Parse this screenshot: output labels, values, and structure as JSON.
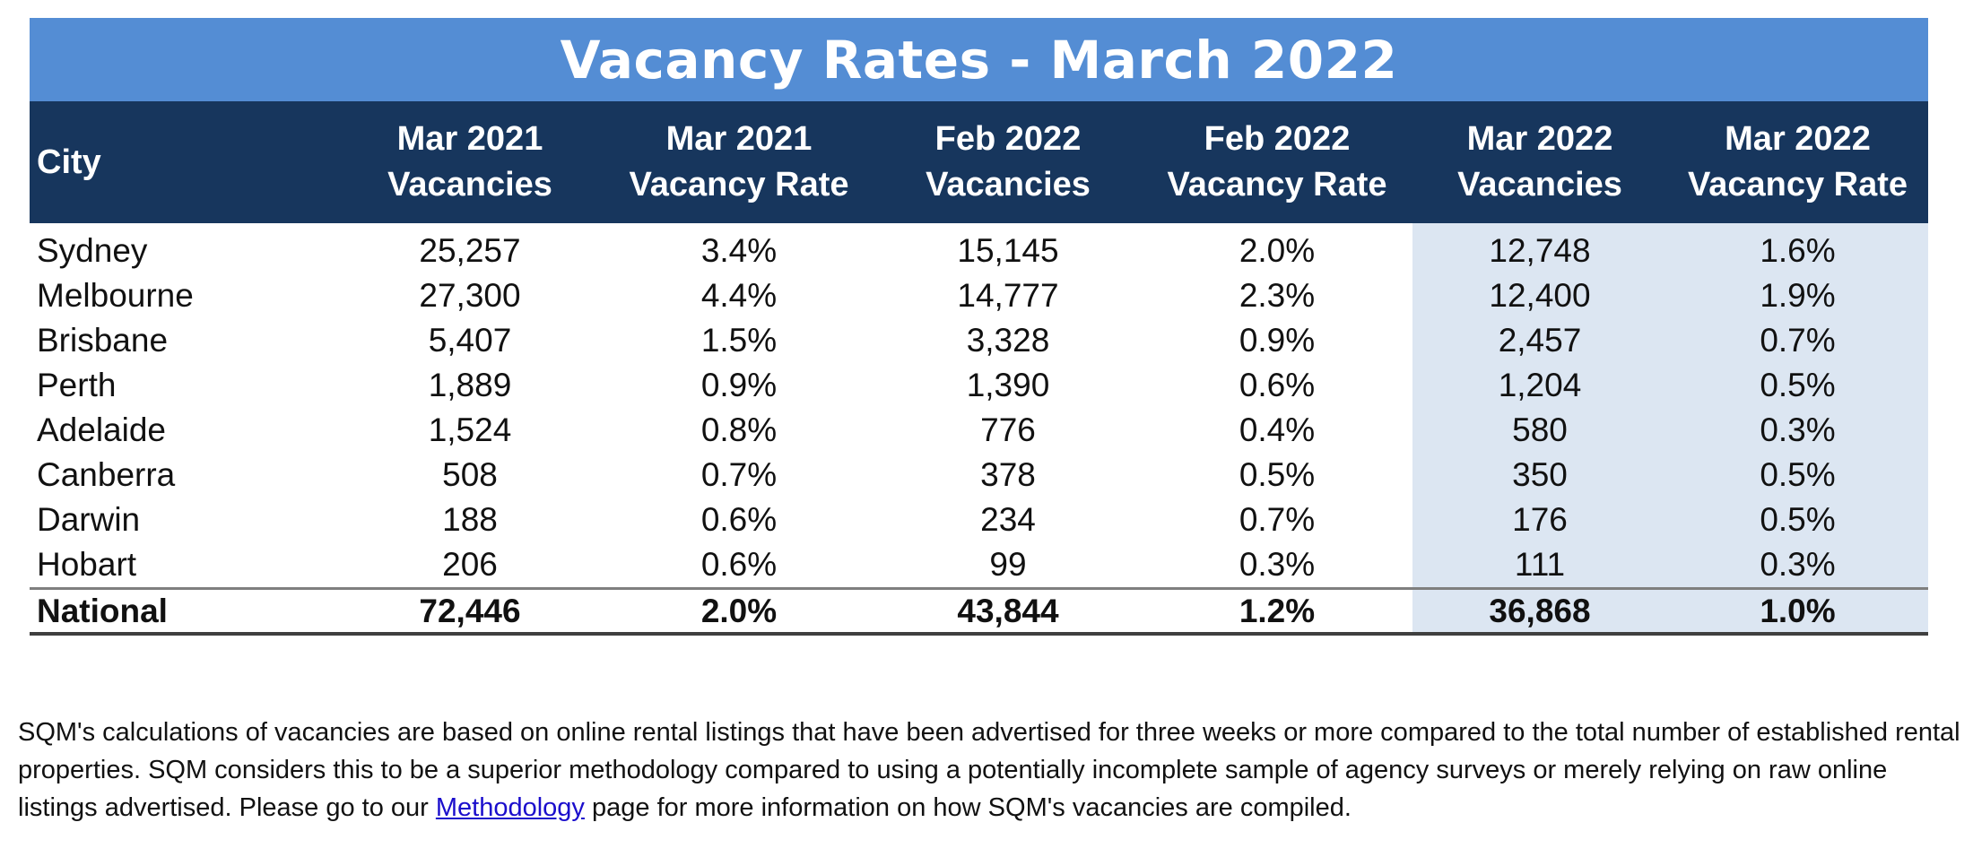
{
  "title": "Vacancy Rates - March 2022",
  "columns": [
    {
      "line1": "City",
      "line2": ""
    },
    {
      "line1": "Mar 2021",
      "line2": "Vacancies"
    },
    {
      "line1": "Mar 2021",
      "line2": "Vacancy Rate"
    },
    {
      "line1": "Feb 2022",
      "line2": "Vacancies"
    },
    {
      "line1": "Feb 2022",
      "line2": "Vacancy Rate"
    },
    {
      "line1": "Mar 2022",
      "line2": "Vacancies"
    },
    {
      "line1": "Mar 2022",
      "line2": "Vacancy Rate"
    }
  ],
  "rows": [
    {
      "city": "Sydney",
      "mar21_vac": "25,257",
      "mar21_rate": "3.4%",
      "feb22_vac": "15,145",
      "feb22_rate": "2.0%",
      "mar22_vac": "12,748",
      "mar22_rate": "1.6%"
    },
    {
      "city": "Melbourne",
      "mar21_vac": "27,300",
      "mar21_rate": "4.4%",
      "feb22_vac": "14,777",
      "feb22_rate": "2.3%",
      "mar22_vac": "12,400",
      "mar22_rate": "1.9%"
    },
    {
      "city": "Brisbane",
      "mar21_vac": "5,407",
      "mar21_rate": "1.5%",
      "feb22_vac": "3,328",
      "feb22_rate": "0.9%",
      "mar22_vac": "2,457",
      "mar22_rate": "0.7%"
    },
    {
      "city": "Perth",
      "mar21_vac": "1,889",
      "mar21_rate": "0.9%",
      "feb22_vac": "1,390",
      "feb22_rate": "0.6%",
      "mar22_vac": "1,204",
      "mar22_rate": "0.5%"
    },
    {
      "city": "Adelaide",
      "mar21_vac": "1,524",
      "mar21_rate": "0.8%",
      "feb22_vac": "776",
      "feb22_rate": "0.4%",
      "mar22_vac": "580",
      "mar22_rate": "0.3%"
    },
    {
      "city": "Canberra",
      "mar21_vac": "508",
      "mar21_rate": "0.7%",
      "feb22_vac": "378",
      "feb22_rate": "0.5%",
      "mar22_vac": "350",
      "mar22_rate": "0.5%"
    },
    {
      "city": "Darwin",
      "mar21_vac": "188",
      "mar21_rate": "0.6%",
      "feb22_vac": "234",
      "feb22_rate": "0.7%",
      "mar22_vac": "176",
      "mar22_rate": "0.5%"
    },
    {
      "city": "Hobart",
      "mar21_vac": "206",
      "mar21_rate": "0.6%",
      "feb22_vac": "99",
      "feb22_rate": "0.3%",
      "mar22_vac": "111",
      "mar22_rate": "0.3%"
    }
  ],
  "total": {
    "city": "National",
    "mar21_vac": "72,446",
    "mar21_rate": "2.0%",
    "feb22_vac": "43,844",
    "feb22_rate": "1.2%",
    "mar22_vac": "36,868",
    "mar22_rate": "1.0%"
  },
  "footnote": {
    "before_link": "SQM's calculations of vacancies are based on online rental listings that have been advertised for three weeks or more compared to the total number of established rental properties. SQM considers this to be a superior methodology compared to using a potentially incomplete sample of agency surveys or merely relying on raw online listings advertised. Please go to our ",
    "link_text": "Methodology",
    "after_link": " page for more information on how SQM's vacancies are compiled."
  },
  "colors": {
    "title_bg": "#548dd4",
    "header_bg": "#17365d",
    "highlight_bg": "#dce6f2",
    "link": "#1a0dcc"
  }
}
